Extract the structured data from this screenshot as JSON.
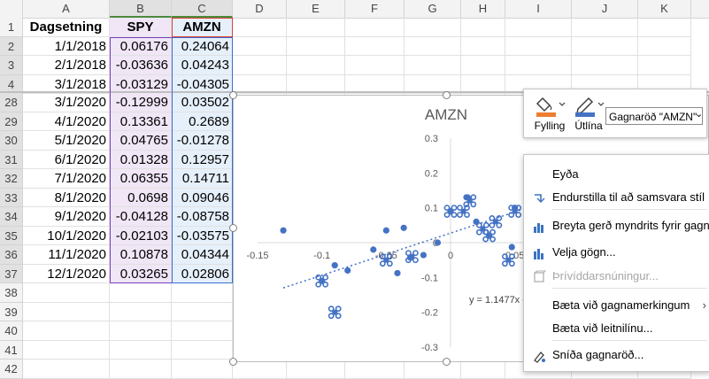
{
  "columns": [
    "A",
    "B",
    "C",
    "D",
    "E",
    "F",
    "G",
    "H",
    "I",
    "J",
    "K"
  ],
  "header_row": {
    "row": "1",
    "a": "Dagsetning",
    "b": "SPY",
    "c": "AMZN"
  },
  "rows": [
    {
      "row": "2",
      "date": "1/1/2018",
      "spy": "0.06176",
      "amzn": "0.24064"
    },
    {
      "row": "3",
      "date": "2/1/2018",
      "spy": "-0.03636",
      "amzn": "0.04243"
    },
    {
      "row": "4",
      "date": "3/1/2018",
      "spy": "-0.03129",
      "amzn": "-0.04305"
    },
    {
      "row": "28",
      "date": "3/1/2020",
      "spy": "-0.12999",
      "amzn": "0.03502"
    },
    {
      "row": "29",
      "date": "4/1/2020",
      "spy": "0.13361",
      "amzn": "0.2689"
    },
    {
      "row": "30",
      "date": "5/1/2020",
      "spy": "0.04765",
      "amzn": "-0.01278"
    },
    {
      "row": "31",
      "date": "6/1/2020",
      "spy": "0.01328",
      "amzn": "0.12957"
    },
    {
      "row": "32",
      "date": "7/1/2020",
      "spy": "0.06355",
      "amzn": "0.14711"
    },
    {
      "row": "33",
      "date": "8/1/2020",
      "spy": "0.0698",
      "amzn": "0.09046"
    },
    {
      "row": "34",
      "date": "9/1/2020",
      "spy": "-0.04128",
      "amzn": "-0.08758"
    },
    {
      "row": "35",
      "date": "10/1/2020",
      "spy": "-0.02103",
      "amzn": "-0.03575"
    },
    {
      "row": "36",
      "date": "11/1/2020",
      "spy": "0.10878",
      "amzn": "0.04344"
    },
    {
      "row": "37",
      "date": "12/1/2020",
      "spy": "0.03265",
      "amzn": "0.02806"
    },
    {
      "row": "38"
    },
    {
      "row": "39"
    },
    {
      "row": "40"
    },
    {
      "row": "41"
    },
    {
      "row": "42"
    }
  ],
  "format_toolbar": {
    "fill_label": "Fylling",
    "outline_label": "Útlína",
    "series_dropdown": "Gagnaröð \"AMZN\"",
    "fill_color": "#ed7d31",
    "outline_color": "#4472c4"
  },
  "context_menu": [
    {
      "label": "Eyða",
      "icon": "none",
      "enabled": true
    },
    {
      "label": "Endurstilla til að samsvara stíl",
      "icon": "reset-style-icon",
      "enabled": true
    },
    {
      "label": "Breyta gerð myndrits fyrir gagna...",
      "icon": "chart-type-icon",
      "enabled": true
    },
    {
      "label": "Velja gögn...",
      "icon": "select-data-icon",
      "enabled": true
    },
    {
      "label": "Þrívíddarsnúningur...",
      "icon": "3d-rotation-icon",
      "enabled": false
    },
    {
      "label": "Bæta við gagnamerkingum",
      "icon": "none",
      "enabled": true,
      "submenu": true
    },
    {
      "label": "Bæta við leitnilínu...",
      "icon": "none",
      "enabled": true
    },
    {
      "label": "Sníða gagnaröð...",
      "icon": "format-series-icon",
      "enabled": true
    }
  ],
  "chart_data": {
    "type": "scatter",
    "title": "AMZN",
    "xlim": [
      -0.15,
      0.1
    ],
    "ylim": [
      -0.3,
      0.3
    ],
    "x_ticks": [
      "-0.15",
      "-0.1",
      "-0.05",
      "0",
      "0.05"
    ],
    "y_ticks": [
      "0.3",
      "0.2",
      "0.1",
      "0",
      "-0.1",
      "-0.2",
      "-0.3"
    ],
    "series": [
      {
        "name": "AMZN",
        "color": "#4472c4",
        "points": [
          [
            -0.12999,
            0.03502
          ],
          [
            -0.1,
            -0.11
          ],
          [
            -0.09,
            -0.065
          ],
          [
            -0.08,
            -0.08
          ],
          [
            -0.06,
            -0.02
          ],
          [
            -0.05,
            0.035
          ],
          [
            -0.04128,
            -0.08758
          ],
          [
            -0.03636,
            0.04243
          ],
          [
            -0.03129,
            -0.04305
          ],
          [
            -0.02103,
            -0.03575
          ],
          [
            -0.01,
            0.0
          ],
          [
            0.0,
            0.09
          ],
          [
            0.01328,
            0.12957
          ],
          [
            0.02,
            0.06
          ],
          [
            0.03,
            0.02
          ],
          [
            0.04765,
            -0.01278
          ],
          [
            0.05,
            0.1
          ],
          [
            0.06176,
            0.24064
          ],
          [
            0.06355,
            0.14711
          ]
        ],
        "marked_points": [
          [
            -0.1,
            -0.11
          ],
          [
            -0.09,
            -0.2
          ],
          [
            -0.05,
            -0.05
          ],
          [
            -0.03,
            -0.04
          ],
          [
            0.0,
            0.09
          ],
          [
            0.01,
            0.09
          ],
          [
            0.015,
            0.12
          ],
          [
            0.025,
            0.04
          ],
          [
            0.03,
            0.02
          ],
          [
            0.035,
            0.06
          ],
          [
            0.045,
            -0.05
          ],
          [
            0.05,
            0.09
          ]
        ]
      }
    ],
    "trendline_equation": "y = 1.1477x -",
    "trendline": {
      "from": [
        -0.13,
        -0.13
      ],
      "to": [
        0.06,
        0.1
      ]
    }
  }
}
